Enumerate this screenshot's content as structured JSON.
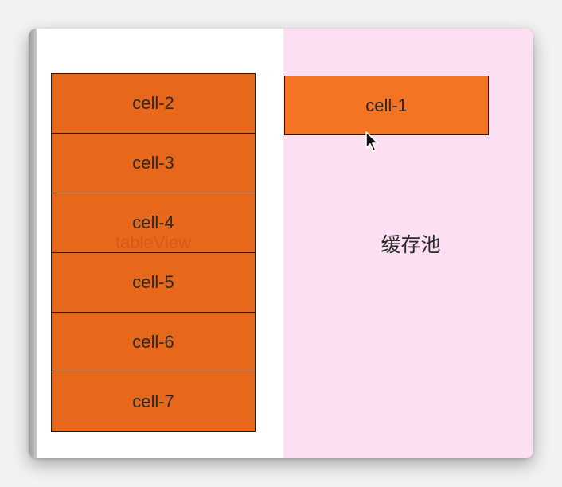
{
  "table_view": {
    "label": "tableView",
    "cells": [
      "cell-2",
      "cell-3",
      "cell-4",
      "cell-5",
      "cell-6",
      "cell-7"
    ]
  },
  "reuse_pool": {
    "label": "缓存池",
    "cell": "cell-1"
  },
  "colors": {
    "cell_fill": "#e8681b",
    "pool_cell_fill": "#f47424",
    "pool_background": "#fcdff3"
  }
}
